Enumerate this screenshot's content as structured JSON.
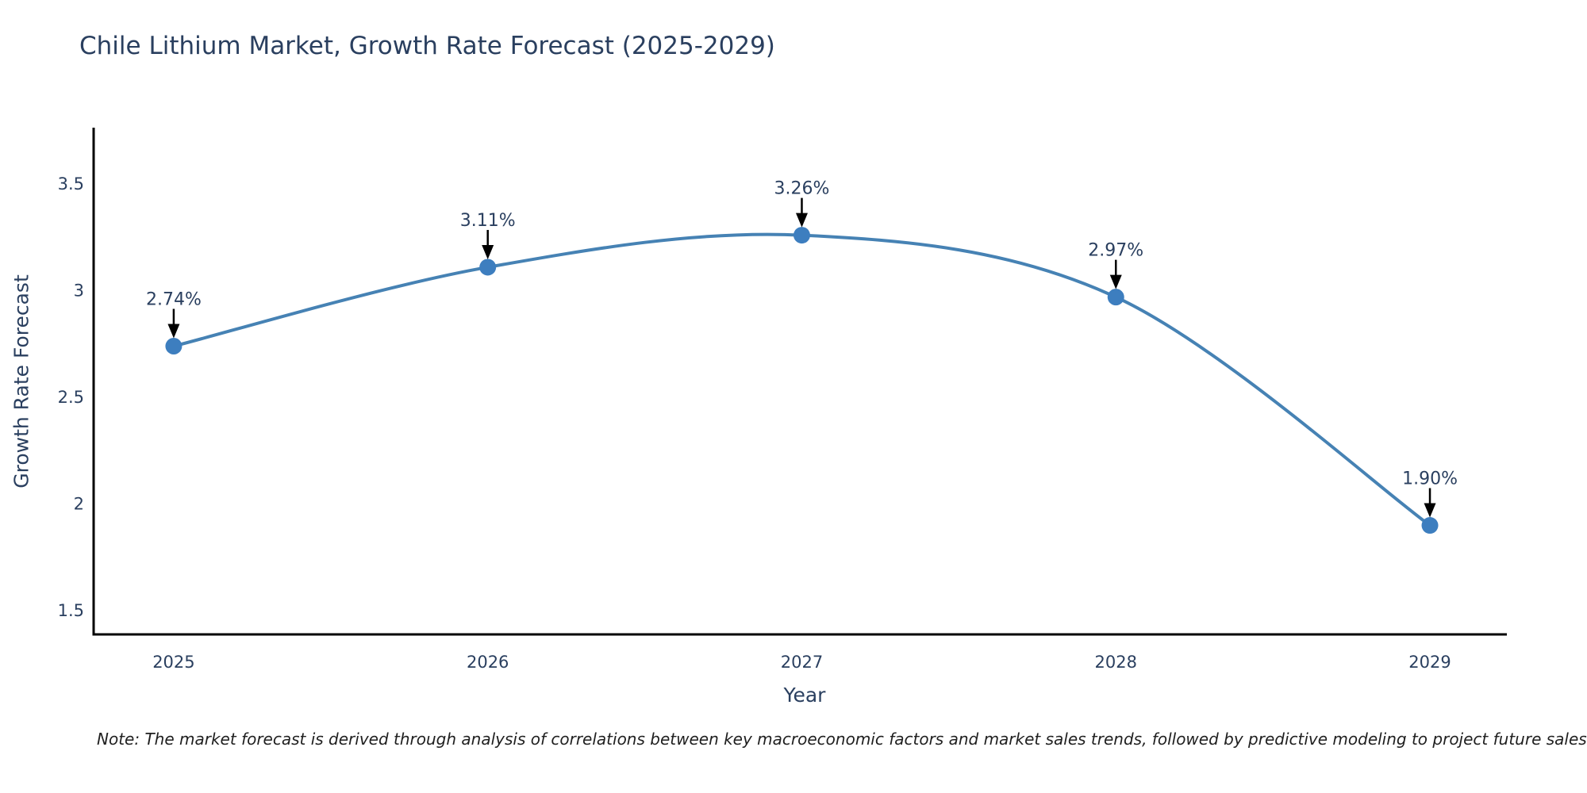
{
  "title": "Chile Lithium Market, Growth Rate Forecast (2025-2029)",
  "note": "Note: The market forecast is derived through analysis of correlations between key macroeconomic factors and market sales trends, followed by predictive modeling to project future sales",
  "colors": {
    "title_text": "#2a3f5f",
    "axis_text": "#2a3f5f",
    "annotation_text": "#2a3f5f",
    "line": "#4682b4",
    "marker": "#3d7ebf",
    "arrow": "#000000",
    "spine": "#000000",
    "background": "#ffffff"
  },
  "chart_data": {
    "type": "line",
    "title": "Chile Lithium Market, Growth Rate Forecast (2025-2029)",
    "xlabel": "Year",
    "ylabel": "Growth Rate Forecast",
    "x": [
      2025,
      2026,
      2027,
      2028,
      2029
    ],
    "values": [
      2.74,
      3.11,
      3.26,
      2.97,
      1.9
    ],
    "point_labels": [
      "2.74%",
      "3.11%",
      "3.26%",
      "2.97%",
      "1.90%"
    ],
    "xtick_labels": [
      "2025",
      "2026",
      "2027",
      "2028",
      "2029"
    ],
    "ytick_values": [
      1.5,
      2,
      2.5,
      3,
      3.5
    ],
    "ytick_labels": [
      "1.5",
      "2",
      "2.5",
      "3",
      "3.5"
    ],
    "xlim": [
      2024.745,
      2029.245
    ],
    "ylim": [
      1.389,
      3.764
    ],
    "line_shape": "spline",
    "markers": true,
    "grid": false,
    "legend": "none",
    "annotation_arrows": true
  }
}
